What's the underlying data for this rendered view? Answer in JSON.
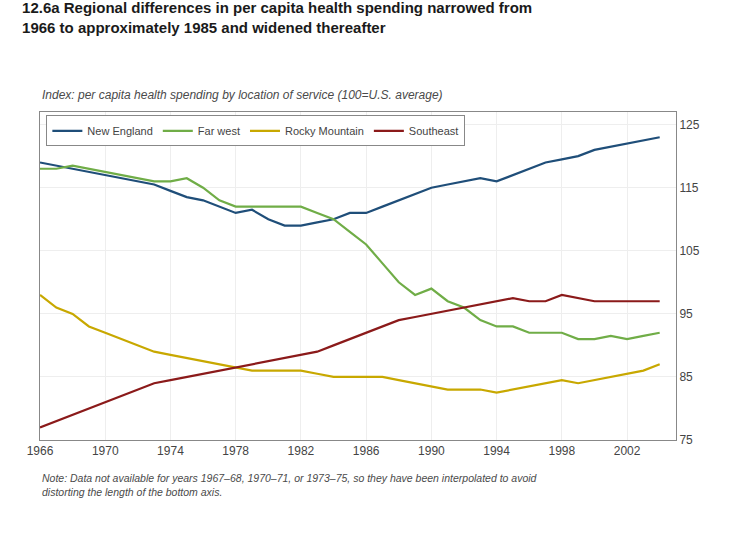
{
  "chart_data": {
    "type": "line",
    "title": "12.6a Regional differences in per capita health spending narrowed from\n1966 to approximately 1985 and widened thereafter",
    "subtitle": "Index: per capita health spending by location of service (100=U.S. average)",
    "annotations": [
      "Note: Data not available for years 1967–68, 1970–71, or 1973–75, so they have been interpolated to avoid\ndistorting the length of the bottom axis."
    ],
    "x": [
      1966,
      1967,
      1968,
      1969,
      1970,
      1971,
      1972,
      1973,
      1974,
      1975,
      1976,
      1977,
      1978,
      1979,
      1980,
      1981,
      1982,
      1983,
      1984,
      1985,
      1986,
      1987,
      1988,
      1989,
      1990,
      1991,
      1992,
      1993,
      1994,
      1995,
      1996,
      1997,
      1998,
      1999,
      2000,
      2001,
      2002,
      2003,
      2004
    ],
    "series": [
      {
        "name": "New England",
        "color": "#1f4e79",
        "values": [
          119,
          118.5,
          118,
          117.5,
          117,
          116.5,
          116,
          115.5,
          114.5,
          113.5,
          113,
          112,
          111,
          111.5,
          110,
          109,
          109,
          109.5,
          110,
          111,
          111,
          112,
          113,
          114,
          115,
          115.5,
          116,
          116.5,
          116,
          117,
          118,
          119,
          119.5,
          120,
          121,
          121.5,
          122,
          122.5,
          123
        ]
      },
      {
        "name": "Far west",
        "color": "#70ad47",
        "values": [
          118,
          118,
          118.5,
          118,
          117.5,
          117,
          116.5,
          116,
          116,
          116.5,
          115,
          113,
          112,
          112,
          112,
          112,
          112,
          111,
          110,
          108,
          106,
          103,
          100,
          98,
          99,
          97,
          96,
          94,
          93,
          93,
          92,
          92,
          92,
          91,
          91,
          91.5,
          91,
          91.5,
          92
        ]
      },
      {
        "name": "Rocky Mountain",
        "color": "#c8a800",
        "values": [
          98,
          96,
          95,
          93,
          92,
          91,
          90,
          89,
          88.5,
          88,
          87.5,
          87,
          86.5,
          86,
          86,
          86,
          86,
          85.5,
          85,
          85,
          85,
          85,
          84.5,
          84,
          83.5,
          83,
          83,
          83,
          82.5,
          83,
          83.5,
          84,
          84.5,
          84,
          84.5,
          85,
          85.5,
          86,
          87
        ]
      },
      {
        "name": "Southeast",
        "color": "#8b1a1a",
        "values": [
          77,
          78,
          79,
          80,
          81,
          82,
          83,
          84,
          84.5,
          85,
          85.5,
          86,
          86.5,
          87,
          87.5,
          88,
          88.5,
          89,
          90,
          91,
          92,
          93,
          94,
          94.5,
          95,
          95.5,
          96,
          96.5,
          97,
          97.5,
          97,
          97,
          98,
          97.5,
          97,
          97,
          97,
          97,
          97
        ]
      }
    ],
    "xlim": [
      1966,
      2005
    ],
    "xticks": [
      1966,
      1970,
      1974,
      1978,
      1982,
      1986,
      1990,
      1994,
      1998,
      2002
    ],
    "ylim": [
      75,
      127
    ],
    "yticks": [
      75,
      85,
      95,
      105,
      115,
      125
    ],
    "grid": true,
    "legend": "upper left"
  }
}
